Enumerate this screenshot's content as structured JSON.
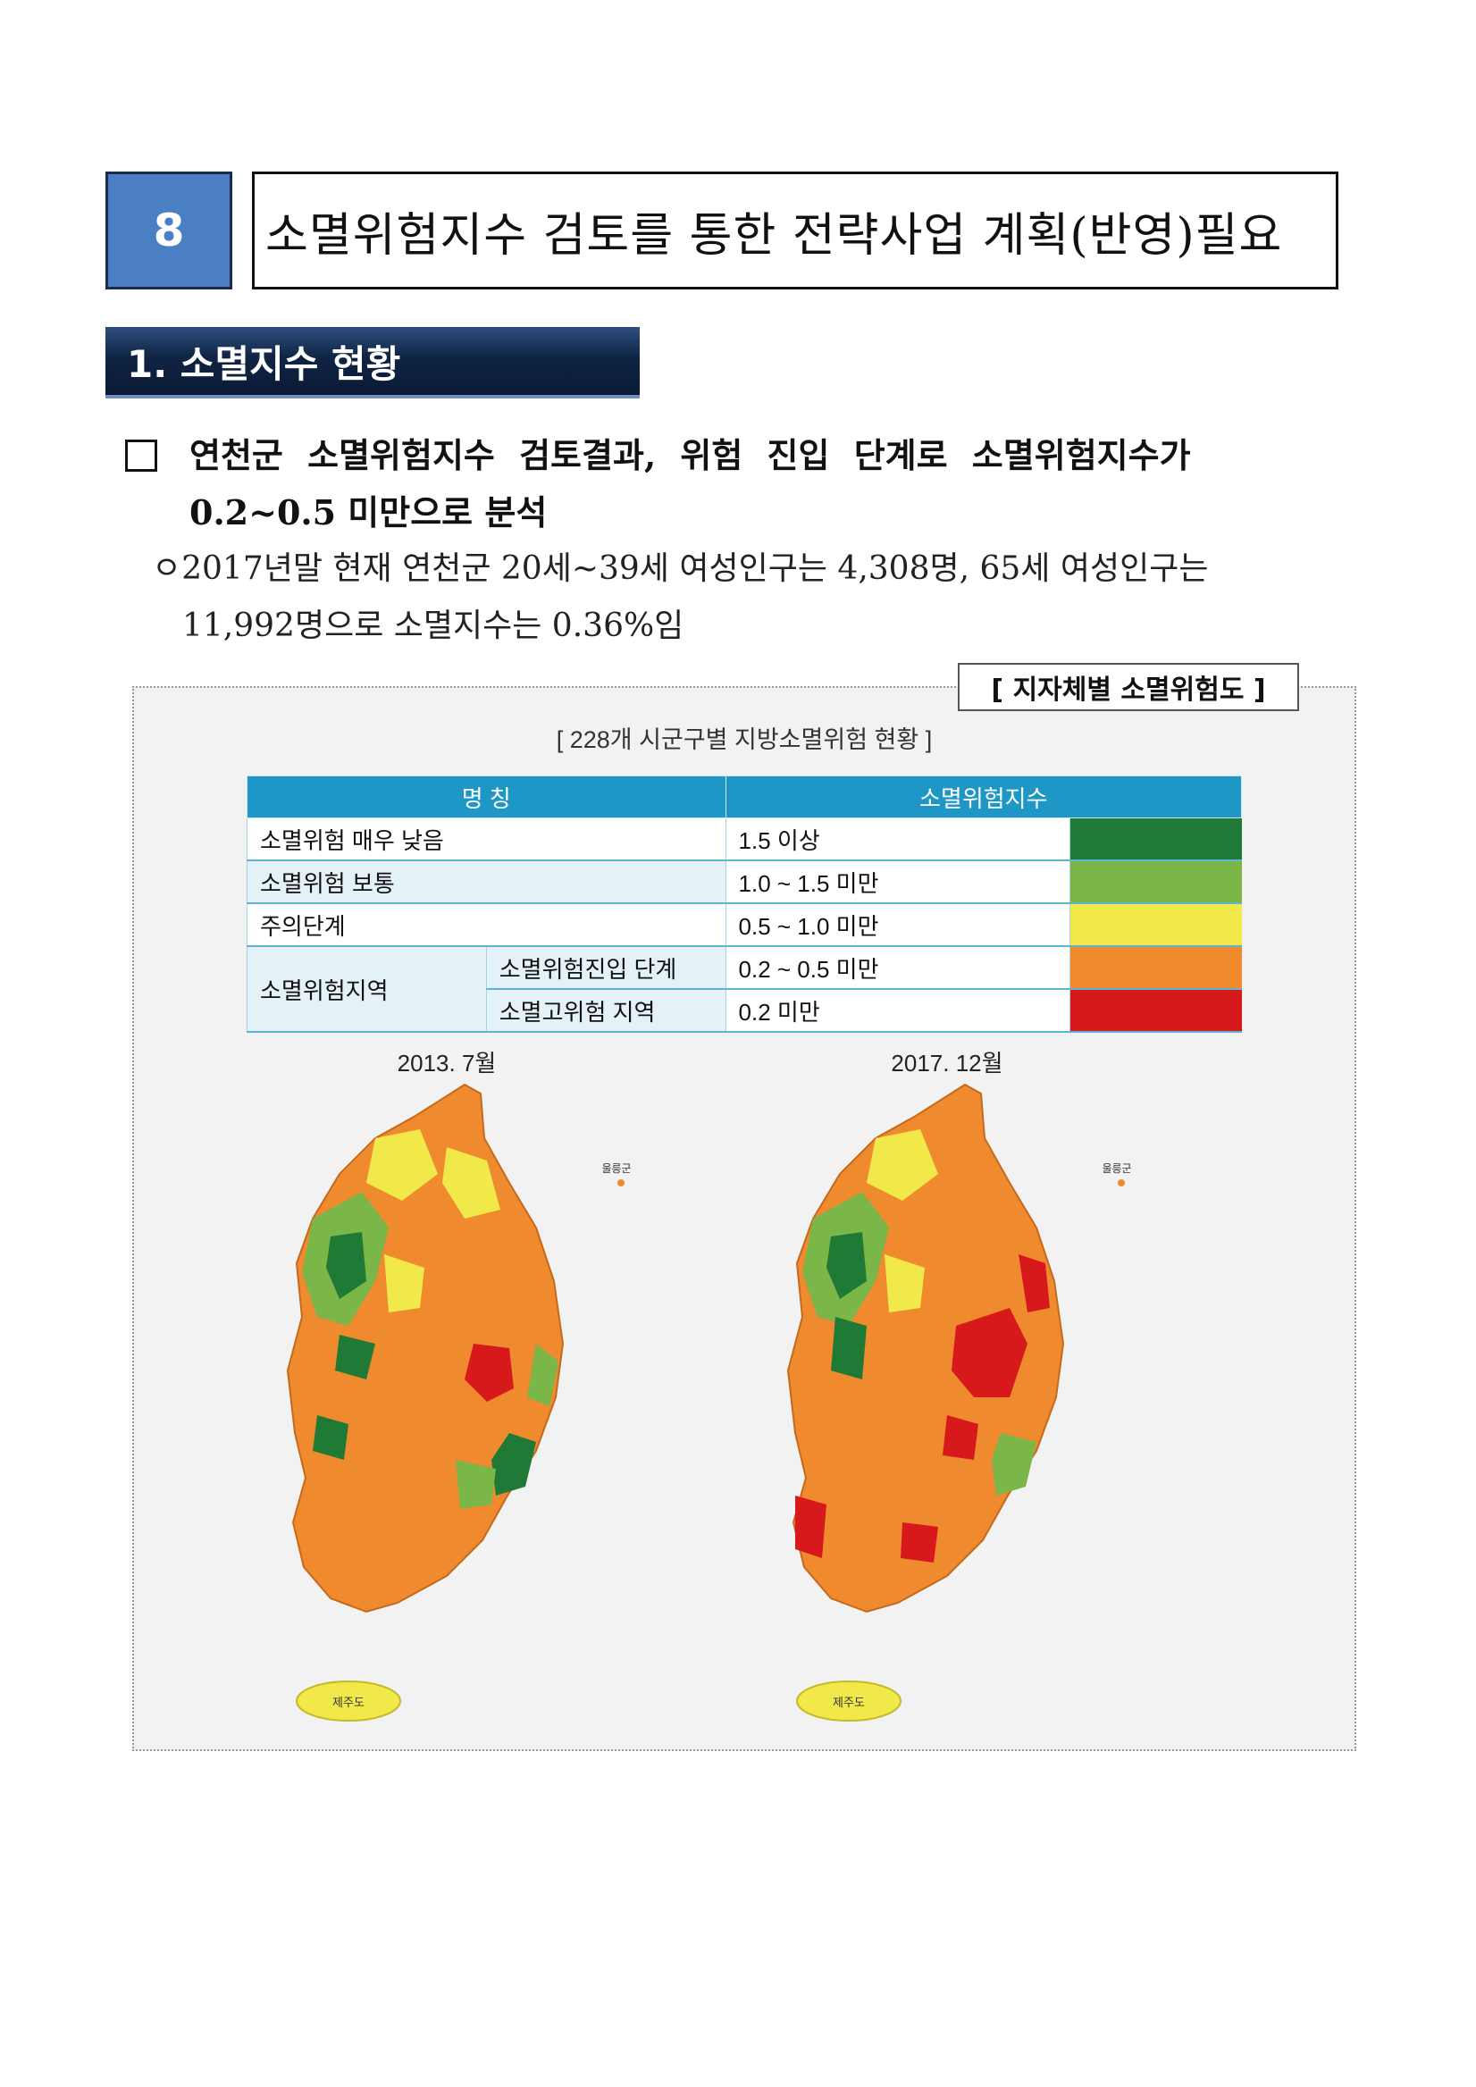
{
  "header": {
    "number": "8",
    "title": "소멸위험지수 검토를 통한 전략사업 계획(반영)필요"
  },
  "section": {
    "title": "1. 소멸지수 현황"
  },
  "bullet": {
    "line1": "연천군 소멸위험지수 검토결과, 위험 진입 단계로 소멸위험지수가",
    "line2": "0.2~0.5 미만으로 분석"
  },
  "sub_bullet": {
    "line1": "ㅇ2017년말 현재 연천군 20세~39세 여성인구는 4,308명, 65세 여성인구는",
    "line2": "11,992명으로 소멸지수는 0.36%임"
  },
  "figure": {
    "label": "[ 지자체별 소멸위험도 ]",
    "title": "[ 228개 시군구별 지방소멸위험 현황 ]",
    "legend": {
      "headers": [
        "명 칭",
        "소멸위험지수"
      ],
      "rows": [
        {
          "name": "소멸위험 매우 낮음",
          "value": "1.5 이상",
          "color": "#1f7a35"
        },
        {
          "name": "소멸위험 보통",
          "value": "1.0 ~ 1.5 미만",
          "color": "#7ab648"
        },
        {
          "name": "주의단계",
          "value": "0.5 ~ 1.0 미만",
          "color": "#f1e94a"
        },
        {
          "group": "소멸위험지역",
          "name": "소멸위험진입 단계",
          "value": "0.2 ~ 0.5 미만",
          "color": "#ef8a2e"
        },
        {
          "name": "소멸고위험 지역",
          "value": "0.2 미만",
          "color": "#d7191c"
        }
      ]
    },
    "maps": [
      {
        "title": "2013. 7월",
        "island_label": "제주도",
        "ulleung_label": "울릉군"
      },
      {
        "title": "2017. 12월",
        "island_label": "제주도",
        "ulleung_label": "울릉군"
      }
    ]
  }
}
